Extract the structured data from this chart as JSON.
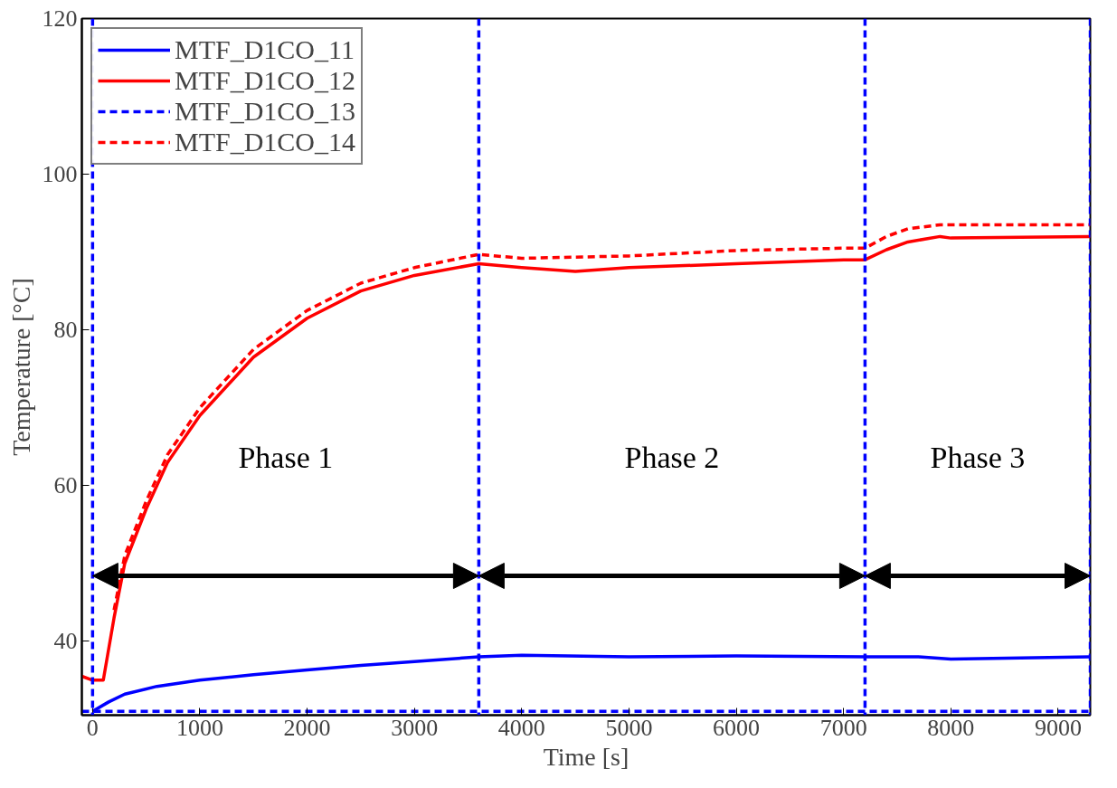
{
  "chart_data": {
    "type": "line",
    "xlabel": "Time [s]",
    "ylabel": "Temperature [°C]",
    "xlim": [
      -100,
      9300
    ],
    "ylim": [
      30.5,
      120
    ],
    "xticks": [
      0,
      1000,
      2000,
      3000,
      4000,
      5000,
      6000,
      7000,
      8000,
      9000
    ],
    "yticks": [
      40,
      60,
      80,
      100,
      120
    ],
    "grid": false,
    "legend": "top left",
    "series": [
      {
        "name": "MTF_D1CO_11",
        "color": "#0000ff",
        "line_style": "solid",
        "x": [
          0,
          150,
          300,
          600,
          1000,
          1500,
          2000,
          2500,
          3000,
          3600,
          4000,
          5000,
          6000,
          7200,
          7700,
          8000,
          9300
        ],
        "values": [
          31,
          32.2,
          33.2,
          34.2,
          35,
          35.7,
          36.3,
          36.9,
          37.4,
          38,
          38.2,
          38,
          38.1,
          38,
          38,
          37.7,
          38
        ]
      },
      {
        "name": "MTF_D1CO_12",
        "color": "#ff0000",
        "line_style": "solid",
        "x": [
          -100,
          0,
          100,
          200,
          300,
          500,
          700,
          1000,
          1500,
          2000,
          2500,
          3000,
          3600,
          4000,
          4500,
          5000,
          6000,
          7000,
          7200,
          7400,
          7600,
          7900,
          8000,
          9300
        ],
        "values": [
          35.5,
          35,
          35,
          43,
          50,
          57,
          63,
          69,
          76.5,
          81.5,
          85,
          87,
          88.5,
          88,
          87.5,
          88,
          88.5,
          89,
          89,
          90.3,
          91.3,
          92,
          91.8,
          92
        ]
      },
      {
        "name": "MTF_D1CO_13",
        "color": "#0000ff",
        "line_style": "dashed",
        "x": [
          -100,
          9300
        ],
        "values": [
          31,
          31
        ]
      },
      {
        "name": "MTF_D1CO_14",
        "color": "#ff0000",
        "line_style": "dashed",
        "x": [
          200,
          300,
          500,
          700,
          1000,
          1500,
          2000,
          2500,
          3000,
          3600,
          4000,
          5000,
          6000,
          7000,
          7200,
          7400,
          7600,
          7900,
          9300
        ],
        "values": [
          44,
          51,
          58,
          64,
          70,
          77.5,
          82.5,
          86,
          88,
          89.7,
          89.2,
          89.5,
          90.2,
          90.5,
          90.5,
          92,
          93,
          93.5,
          93.5
        ]
      }
    ],
    "ref_lines": [
      {
        "axis": "x",
        "value": 0,
        "color": "#0000ff",
        "line_style": "dashed"
      },
      {
        "axis": "x",
        "value": 3600,
        "color": "#0000ff",
        "line_style": "dashed"
      },
      {
        "axis": "x",
        "value": 7200,
        "color": "#0000ff",
        "line_style": "dashed"
      },
      {
        "axis": "x",
        "value": 9300,
        "color": "#0000ff",
        "line_style": "dashed"
      }
    ],
    "annotations": [
      "Phase 1",
      "Phase 2",
      "Phase 3"
    ]
  }
}
